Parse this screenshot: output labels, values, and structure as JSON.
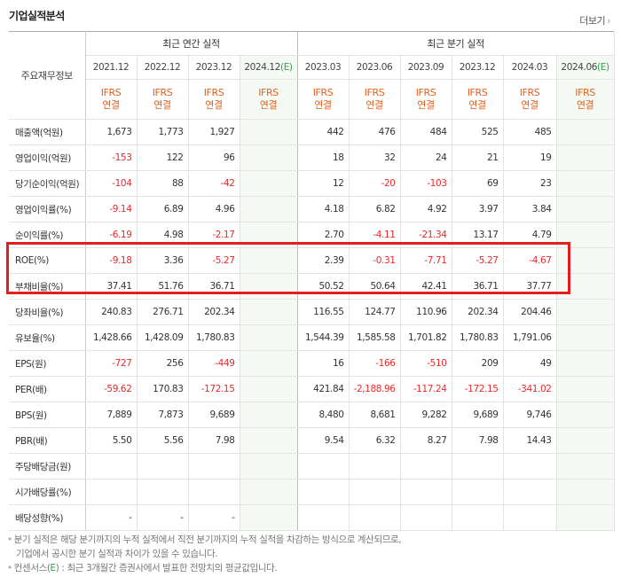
{
  "section_title": "기업실적분석",
  "more_link": "더보기",
  "more_arrow": "›",
  "row_header_label": "주요재무정보",
  "groups": {
    "annual": "최근 연간 실적",
    "quarterly": "최근 분기 실적"
  },
  "columns": [
    {
      "period": "2021.12",
      "ifrs1": "IFRS",
      "ifrs2": "연결"
    },
    {
      "period": "2022.12",
      "ifrs1": "IFRS",
      "ifrs2": "연결"
    },
    {
      "period": "2023.12",
      "ifrs1": "IFRS",
      "ifrs2": "연결"
    },
    {
      "period": "2024.12",
      "est": "(E)",
      "ifrs1": "IFRS",
      "ifrs2": "연결"
    },
    {
      "period": "2023.03",
      "ifrs1": "IFRS",
      "ifrs2": "연결"
    },
    {
      "period": "2023.06",
      "ifrs1": "IFRS",
      "ifrs2": "연결"
    },
    {
      "period": "2023.09",
      "ifrs1": "IFRS",
      "ifrs2": "연결"
    },
    {
      "period": "2023.12",
      "ifrs1": "IFRS",
      "ifrs2": "연결"
    },
    {
      "period": "2024.03",
      "ifrs1": "IFRS",
      "ifrs2": "연결"
    },
    {
      "period": "2024.06",
      "est": "(E)",
      "ifrs1": "IFRS",
      "ifrs2": "연결"
    }
  ],
  "rows": [
    {
      "label": "매출액(억원)",
      "values": [
        "1,673",
        "1,773",
        "1,927",
        "",
        "442",
        "476",
        "484",
        "525",
        "485",
        ""
      ]
    },
    {
      "label": "영업이익(억원)",
      "values": [
        "-153",
        "122",
        "96",
        "",
        "18",
        "32",
        "24",
        "21",
        "19",
        ""
      ]
    },
    {
      "label": "당기순이익(억원)",
      "values": [
        "-104",
        "88",
        "-42",
        "",
        "12",
        "-20",
        "-103",
        "69",
        "23",
        ""
      ]
    },
    {
      "label": "영업이익률(%)",
      "values": [
        "-9.14",
        "6.89",
        "4.96",
        "",
        "4.18",
        "6.82",
        "4.92",
        "3.97",
        "3.84",
        ""
      ]
    },
    {
      "label": "순이익률(%)",
      "values": [
        "-6.19",
        "4.98",
        "-2.17",
        "",
        "2.70",
        "-4.11",
        "-21.34",
        "13.17",
        "4.79",
        ""
      ]
    },
    {
      "label": "ROE(%)",
      "values": [
        "-9.18",
        "3.36",
        "-5.27",
        "",
        "2.39",
        "-0.31",
        "-7.71",
        "-5.27",
        "-4.67",
        ""
      ]
    },
    {
      "label": "부채비율(%)",
      "values": [
        "37.41",
        "51.76",
        "36.71",
        "",
        "50.52",
        "50.64",
        "42.41",
        "36.71",
        "37.77",
        ""
      ]
    },
    {
      "label": "당좌비율(%)",
      "values": [
        "240.83",
        "276.71",
        "202.34",
        "",
        "116.55",
        "124.77",
        "110.96",
        "202.34",
        "204.46",
        ""
      ]
    },
    {
      "label": "유보율(%)",
      "values": [
        "1,428.66",
        "1,428.09",
        "1,780.83",
        "",
        "1,544.39",
        "1,585.58",
        "1,701.82",
        "1,780.83",
        "1,791.06",
        ""
      ]
    },
    {
      "label": "EPS(원)",
      "values": [
        "-727",
        "256",
        "-449",
        "",
        "16",
        "-166",
        "-510",
        "209",
        "49",
        ""
      ]
    },
    {
      "label": "PER(배)",
      "values": [
        "-59.62",
        "170.83",
        "-172.15",
        "",
        "421.84",
        "-2,188.96",
        "-117.24",
        "-172.15",
        "-341.02",
        ""
      ]
    },
    {
      "label": "BPS(원)",
      "values": [
        "7,889",
        "7,873",
        "9,689",
        "",
        "8,480",
        "8,681",
        "9,282",
        "9,689",
        "9,746",
        ""
      ]
    },
    {
      "label": "PBR(배)",
      "values": [
        "5.50",
        "5.56",
        "7.98",
        "",
        "9.54",
        "6.32",
        "8.27",
        "7.98",
        "14.43",
        ""
      ]
    },
    {
      "label": "주당배당금(원)",
      "values": [
        "",
        "",
        "",
        "",
        "",
        "",
        "",
        "",
        "",
        ""
      ]
    },
    {
      "label": "시가배당률(%)",
      "values": [
        "",
        "",
        "",
        "",
        "",
        "",
        "",
        "",
        "",
        ""
      ]
    },
    {
      "label": "배당성향(%)",
      "values": [
        "-",
        "-",
        "-",
        "",
        "",
        "",
        "",
        "",
        "",
        ""
      ]
    }
  ],
  "highlighted_rows": [
    "ROE(%)",
    "부채비율(%)"
  ],
  "notes": {
    "line1": "분기 실적은 해당 분기까지의 누적 실적에서 직전 분기까지의 누적 실적을 차감하는 방식으로 계산되므로,",
    "line2": "기업에서 공시한 분기 실적과 차이가 있을 수 있습니다.",
    "line3_pre": "컨센서스(",
    "line3_e": "E",
    "line3_post": ") : 최근 3개월간 증권사에서 발표한 전망치의 평균값입니다."
  },
  "colors": {
    "ifrs": "#e4611e",
    "negative": "#e62a2a",
    "estimate_bg": "#f4faf3",
    "highlight_box": "#e41e1e",
    "estimate_mark": "#2fa24b"
  }
}
